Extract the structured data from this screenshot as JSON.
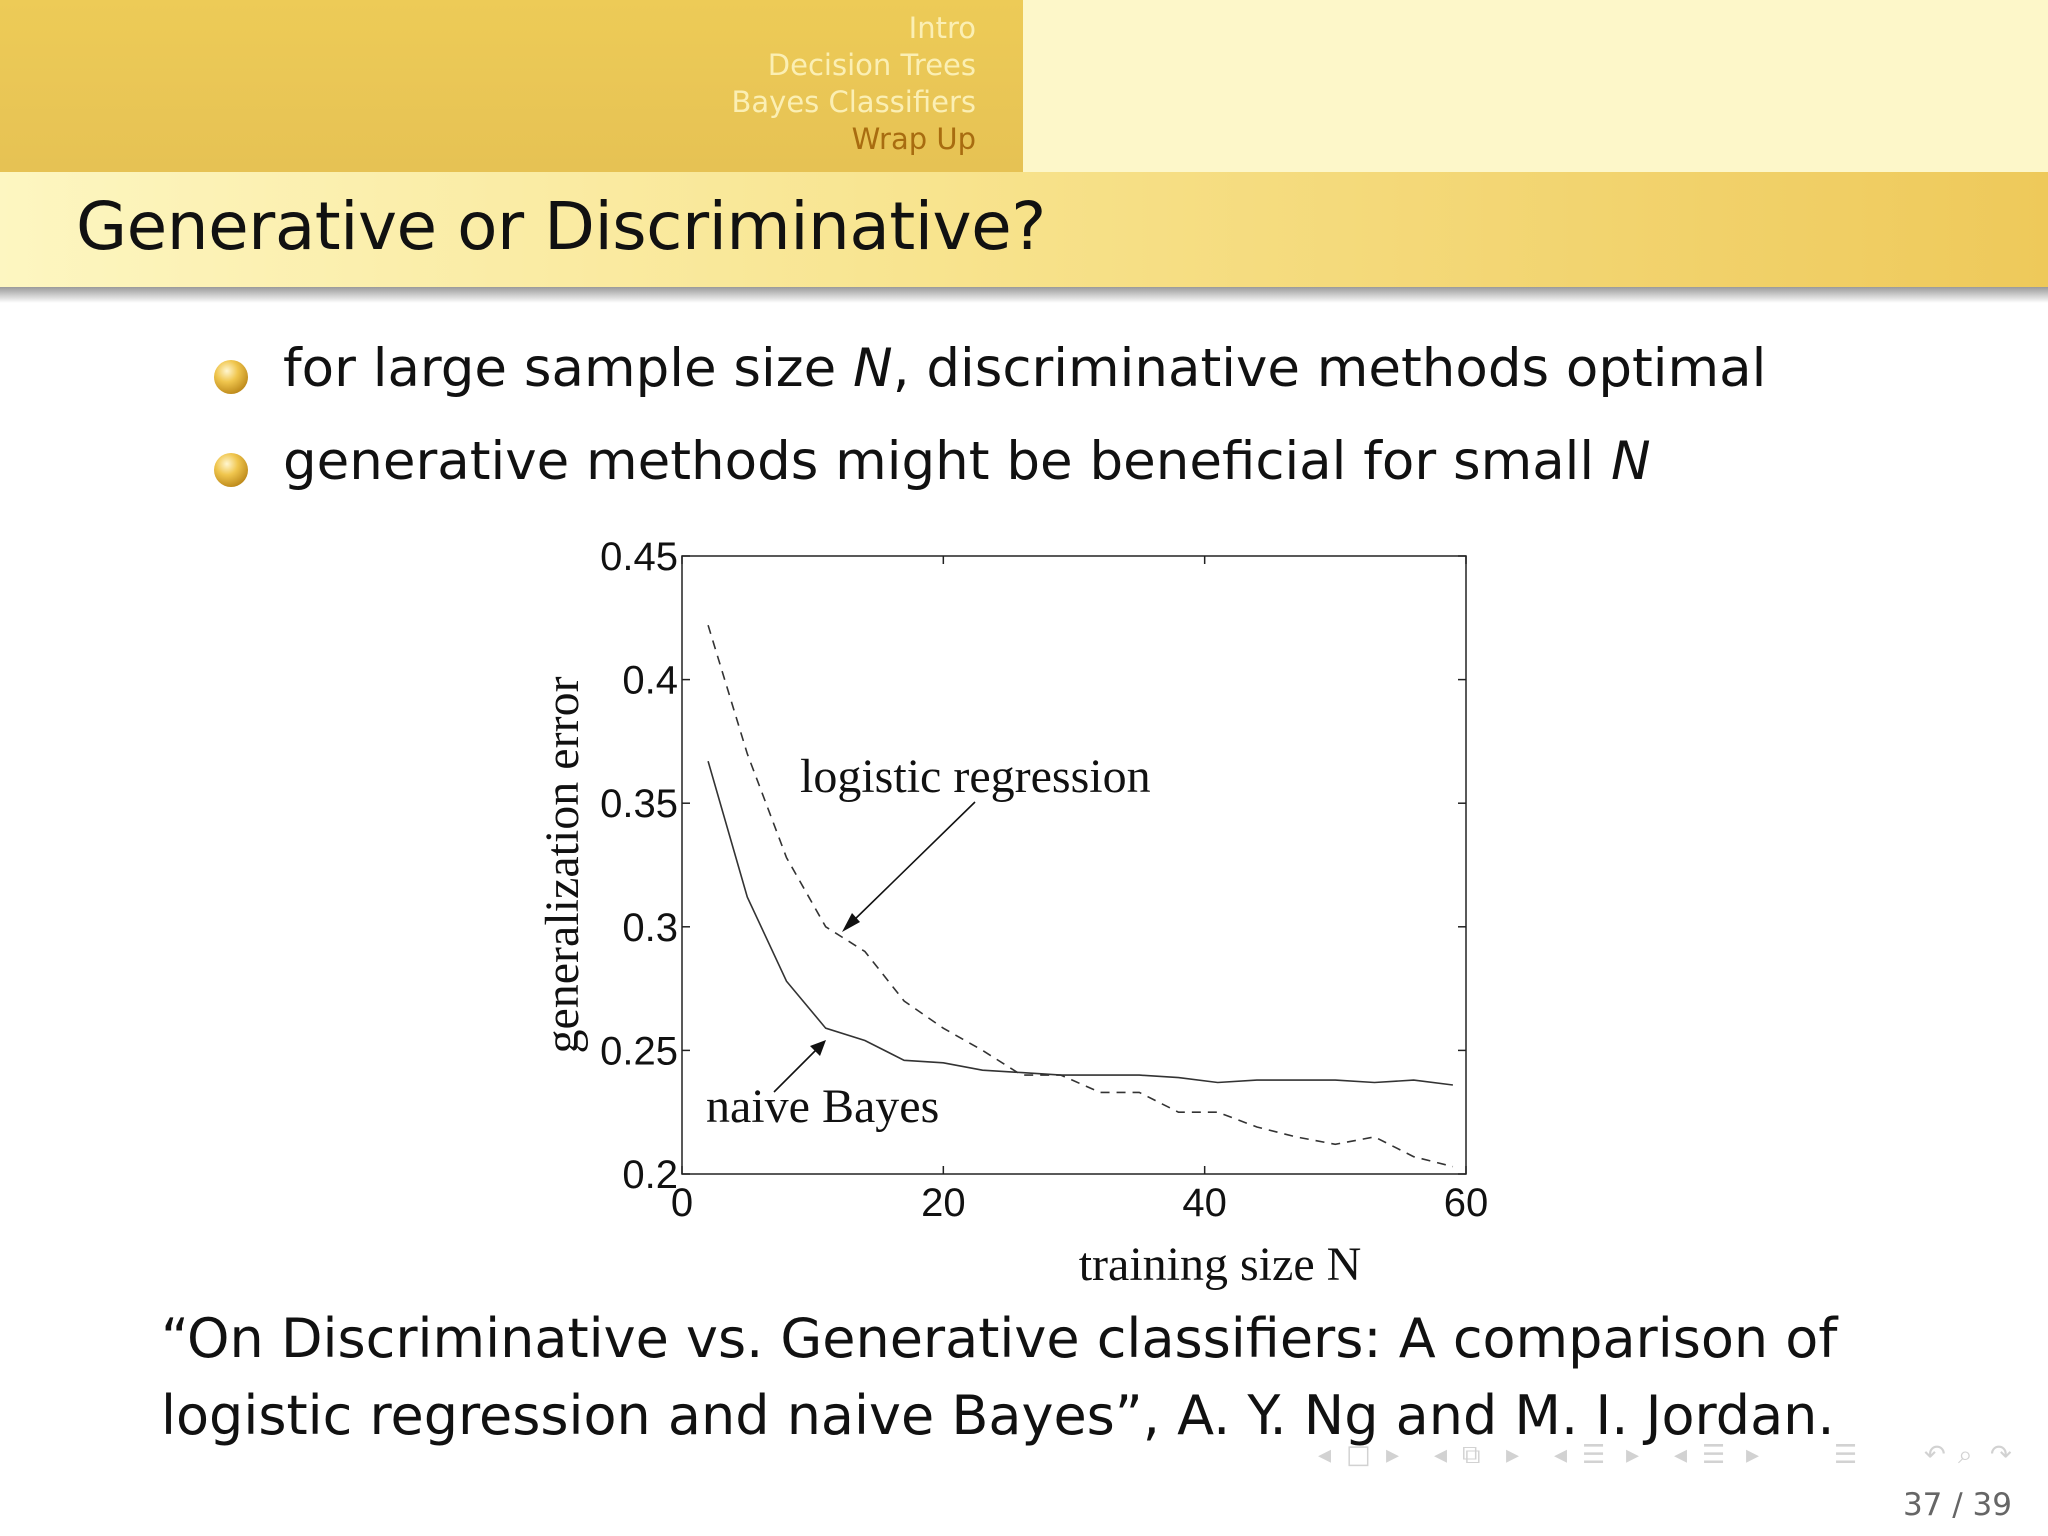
{
  "header": {
    "sections": [
      "Intro",
      "Decision Trees",
      "Bayes Classifiers",
      "Wrap Up"
    ],
    "active_section": "Wrap Up"
  },
  "slide": {
    "title": "Generative or Discriminative?",
    "bullets": [
      {
        "pre": "for large sample size ",
        "var": "N",
        "post": ", discriminative methods optimal"
      },
      {
        "pre": "generative methods might be beneficial for small ",
        "var": "N",
        "post": ""
      }
    ],
    "citation_line1": "“On Discriminative vs.  Generative classifiers:  A comparison of",
    "citation_line2": "logistic regression and naive Bayes”, A. Y. Ng and M. I. Jordan."
  },
  "chart_data": {
    "type": "line",
    "xlabel": "training size N",
    "ylabel": "generalization error",
    "xlim": [
      0,
      60
    ],
    "ylim": [
      0.2,
      0.45
    ],
    "xticks": [
      "0",
      "20",
      "40",
      "60"
    ],
    "yticks": [
      "0.2",
      "0.25",
      "0.3",
      "0.35",
      "0.4",
      "0.45"
    ],
    "grid": false,
    "annotations": [
      "logistic regression",
      "naive Bayes"
    ],
    "series": [
      {
        "name": "logistic regression",
        "style": "dashed",
        "x": [
          2,
          5,
          8,
          11,
          14,
          17,
          20,
          23,
          26,
          29,
          32,
          35,
          38,
          41,
          44,
          47,
          50,
          53,
          56,
          59
        ],
        "y": [
          0.422,
          0.37,
          0.328,
          0.3,
          0.29,
          0.27,
          0.259,
          0.25,
          0.24,
          0.24,
          0.233,
          0.233,
          0.225,
          0.225,
          0.219,
          0.215,
          0.212,
          0.215,
          0.207,
          0.203
        ]
      },
      {
        "name": "naive Bayes",
        "style": "solid",
        "x": [
          2,
          5,
          8,
          11,
          14,
          17,
          20,
          23,
          26,
          29,
          32,
          35,
          38,
          41,
          44,
          47,
          50,
          53,
          56,
          59
        ],
        "y": [
          0.367,
          0.312,
          0.278,
          0.259,
          0.254,
          0.246,
          0.245,
          0.242,
          0.241,
          0.24,
          0.24,
          0.24,
          0.239,
          0.237,
          0.238,
          0.238,
          0.238,
          0.237,
          0.238,
          0.236
        ]
      }
    ]
  },
  "navigation": {
    "page_current": "37",
    "page_total": "39",
    "page_label": "37 / 39",
    "icons": [
      "prev-frame-icon",
      "frame-icon",
      "next-frame-icon",
      "prev-subsection-icon",
      "subsection-icon",
      "next-subsection-icon",
      "prev-section-icon",
      "section-icon",
      "next-section-icon",
      "prev-slide-icon",
      "slide-icon",
      "next-slide-icon",
      "align-icon",
      "undo-icon",
      "search-icon",
      "redo-icon"
    ]
  }
}
